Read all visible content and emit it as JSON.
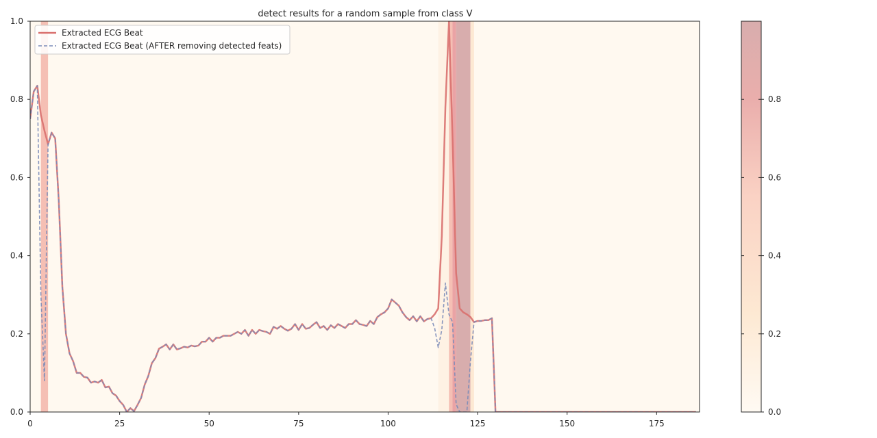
{
  "chart_data": {
    "type": "line",
    "title": "detect results for a random sample from class V",
    "xlabel": "",
    "ylabel": "",
    "xlim": [
      0,
      187
    ],
    "ylim": [
      0,
      1
    ],
    "x_ticks": [
      "0",
      "25",
      "50",
      "75",
      "100",
      "125",
      "150",
      "175"
    ],
    "y_ticks": [
      "0.0",
      "0.2",
      "0.4",
      "0.6",
      "0.8",
      "1.0"
    ],
    "grid": false,
    "legend_position": "top-left",
    "series": [
      {
        "name": "Extracted ECG Beat",
        "style": "solid",
        "color": "#d9706e",
        "values": [
          0.75,
          0.82,
          0.835,
          0.76,
          0.72,
          0.685,
          0.715,
          0.7,
          0.54,
          0.32,
          0.2,
          0.15,
          0.13,
          0.1,
          0.1,
          0.09,
          0.088,
          0.075,
          0.078,
          0.075,
          0.082,
          0.063,
          0.065,
          0.048,
          0.042,
          0.028,
          0.018,
          0.0,
          0.01,
          0.002,
          0.018,
          0.036,
          0.07,
          0.092,
          0.125,
          0.138,
          0.162,
          0.167,
          0.173,
          0.16,
          0.173,
          0.16,
          0.163,
          0.167,
          0.165,
          0.17,
          0.168,
          0.17,
          0.18,
          0.18,
          0.19,
          0.18,
          0.19,
          0.19,
          0.195,
          0.195,
          0.195,
          0.2,
          0.205,
          0.2,
          0.21,
          0.195,
          0.21,
          0.2,
          0.21,
          0.207,
          0.205,
          0.2,
          0.218,
          0.213,
          0.22,
          0.213,
          0.208,
          0.213,
          0.225,
          0.21,
          0.225,
          0.213,
          0.215,
          0.223,
          0.23,
          0.215,
          0.22,
          0.21,
          0.222,
          0.215,
          0.225,
          0.22,
          0.215,
          0.225,
          0.225,
          0.235,
          0.225,
          0.223,
          0.22,
          0.233,
          0.225,
          0.243,
          0.25,
          0.255,
          0.265,
          0.288,
          0.28,
          0.272,
          0.255,
          0.243,
          0.235,
          0.245,
          0.232,
          0.245,
          0.232,
          0.238,
          0.24,
          0.25,
          0.265,
          0.45,
          0.78,
          1.0,
          0.7,
          0.355,
          0.265,
          0.255,
          0.25,
          0.243,
          0.23,
          0.233,
          0.233,
          0.235,
          0.235,
          0.24,
          0.0,
          0.0,
          0.0,
          0.0,
          0.0,
          0.0,
          0.0,
          0.0,
          0.0,
          0.0,
          0.0,
          0.0,
          0.0,
          0.0,
          0.0,
          0.0,
          0.0,
          0.0,
          0.0,
          0.0,
          0.0,
          0.0,
          0.0,
          0.0,
          0.0,
          0.0,
          0.0,
          0.0,
          0.0,
          0.0,
          0.0,
          0.0,
          0.0,
          0.0,
          0.0,
          0.0,
          0.0,
          0.0,
          0.0,
          0.0,
          0.0,
          0.0,
          0.0,
          0.0,
          0.0,
          0.0,
          0.0,
          0.0,
          0.0,
          0.0,
          0.0,
          0.0,
          0.0,
          0.0,
          0.0,
          0.0,
          0.0
        ]
      },
      {
        "name": "Extracted ECG Beat (AFTER removing detected feats)",
        "style": "dashed",
        "color": "#7a8bb8",
        "values": [
          0.75,
          0.82,
          0.835,
          0.3,
          0.08,
          0.685,
          0.715,
          0.7,
          0.54,
          0.32,
          0.2,
          0.15,
          0.13,
          0.1,
          0.1,
          0.09,
          0.088,
          0.075,
          0.078,
          0.075,
          0.082,
          0.063,
          0.065,
          0.048,
          0.042,
          0.028,
          0.018,
          0.0,
          0.01,
          0.002,
          0.018,
          0.036,
          0.07,
          0.092,
          0.125,
          0.138,
          0.162,
          0.167,
          0.173,
          0.16,
          0.173,
          0.16,
          0.163,
          0.167,
          0.165,
          0.17,
          0.168,
          0.17,
          0.18,
          0.18,
          0.19,
          0.18,
          0.19,
          0.19,
          0.195,
          0.195,
          0.195,
          0.2,
          0.205,
          0.2,
          0.21,
          0.195,
          0.21,
          0.2,
          0.21,
          0.207,
          0.205,
          0.2,
          0.218,
          0.213,
          0.22,
          0.213,
          0.208,
          0.213,
          0.225,
          0.21,
          0.225,
          0.213,
          0.215,
          0.223,
          0.23,
          0.215,
          0.22,
          0.21,
          0.222,
          0.215,
          0.225,
          0.22,
          0.215,
          0.225,
          0.225,
          0.235,
          0.225,
          0.223,
          0.22,
          0.233,
          0.225,
          0.243,
          0.25,
          0.255,
          0.265,
          0.288,
          0.28,
          0.272,
          0.255,
          0.243,
          0.235,
          0.245,
          0.232,
          0.245,
          0.232,
          0.238,
          0.24,
          0.215,
          0.165,
          0.21,
          0.33,
          0.25,
          0.23,
          0.02,
          0.0,
          0.0,
          0.0,
          0.13,
          0.23,
          0.233,
          0.233,
          0.235,
          0.235,
          0.24,
          0.0,
          0.0,
          0.0,
          0.0,
          0.0,
          0.0,
          0.0,
          0.0,
          0.0,
          0.0,
          0.0,
          0.0,
          0.0,
          0.0,
          0.0,
          0.0,
          0.0,
          0.0,
          0.0,
          0.0,
          0.0,
          0.0,
          0.0,
          0.0,
          0.0,
          0.0,
          0.0,
          0.0,
          0.0,
          0.0,
          0.0,
          0.0,
          0.0,
          0.0,
          0.0,
          0.0,
          0.0,
          0.0,
          0.0,
          0.0,
          0.0,
          0.0,
          0.0,
          0.0,
          0.0,
          0.0,
          0.0,
          0.0,
          0.0,
          0.0,
          0.0,
          0.0,
          0.0,
          0.0,
          0.0,
          0.0,
          0.0
        ]
      }
    ],
    "importance_bands": [
      {
        "x0": 3,
        "x1": 5,
        "value": 0.55
      },
      {
        "x0": 114,
        "x1": 117,
        "value": 0.12
      },
      {
        "x0": 117,
        "x1": 118,
        "value": 0.55
      },
      {
        "x0": 118,
        "x1": 119,
        "value": 0.75
      },
      {
        "x0": 119,
        "x1": 123,
        "value": 1.0
      },
      {
        "x0": 123,
        "x1": 124,
        "value": 0.25
      }
    ],
    "background_value": 0.02,
    "colorbar": {
      "range": [
        0,
        1
      ],
      "ticks": [
        "0.0",
        "0.2",
        "0.4",
        "0.6",
        "0.8"
      ],
      "colors": [
        "#fffaf3",
        "#fde9d3",
        "#f8c6b8",
        "#eaa3a5",
        "#d8adad"
      ]
    }
  }
}
